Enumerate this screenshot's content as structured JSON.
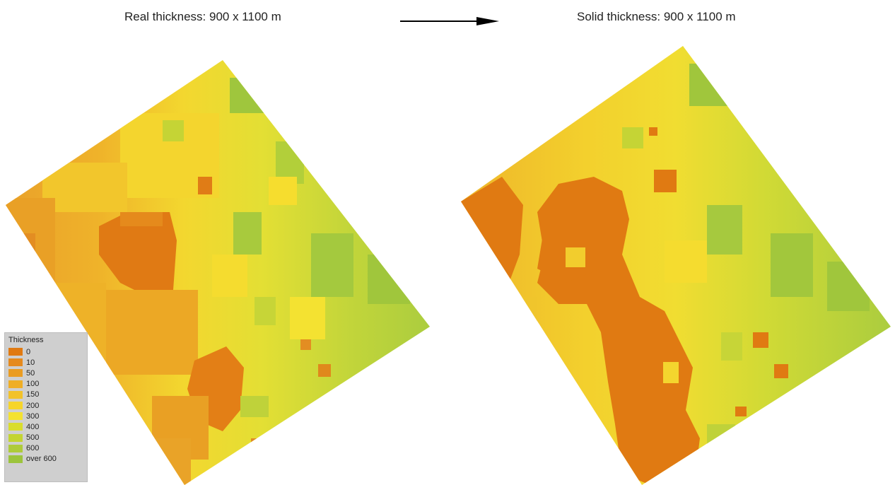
{
  "titles": {
    "left": "Real thickness: 900 x 1100 m",
    "right": "Solid thickness: 900 x 1100 m"
  },
  "legend": {
    "title": "Thickness",
    "items": [
      {
        "label": "0",
        "color": "#e07a12"
      },
      {
        "label": "10",
        "color": "#e58a1e"
      },
      {
        "label": "50",
        "color": "#ea9c22"
      },
      {
        "label": "100",
        "color": "#efae25"
      },
      {
        "label": "150",
        "color": "#f2c22a"
      },
      {
        "label": "200",
        "color": "#f6d52a"
      },
      {
        "label": "300",
        "color": "#f4e230"
      },
      {
        "label": "400",
        "color": "#d9dd2c"
      },
      {
        "label": "500",
        "color": "#c3d431"
      },
      {
        "label": "600",
        "color": "#aecb3a"
      },
      {
        "label": "over 600",
        "color": "#9cc43c"
      }
    ]
  }
}
